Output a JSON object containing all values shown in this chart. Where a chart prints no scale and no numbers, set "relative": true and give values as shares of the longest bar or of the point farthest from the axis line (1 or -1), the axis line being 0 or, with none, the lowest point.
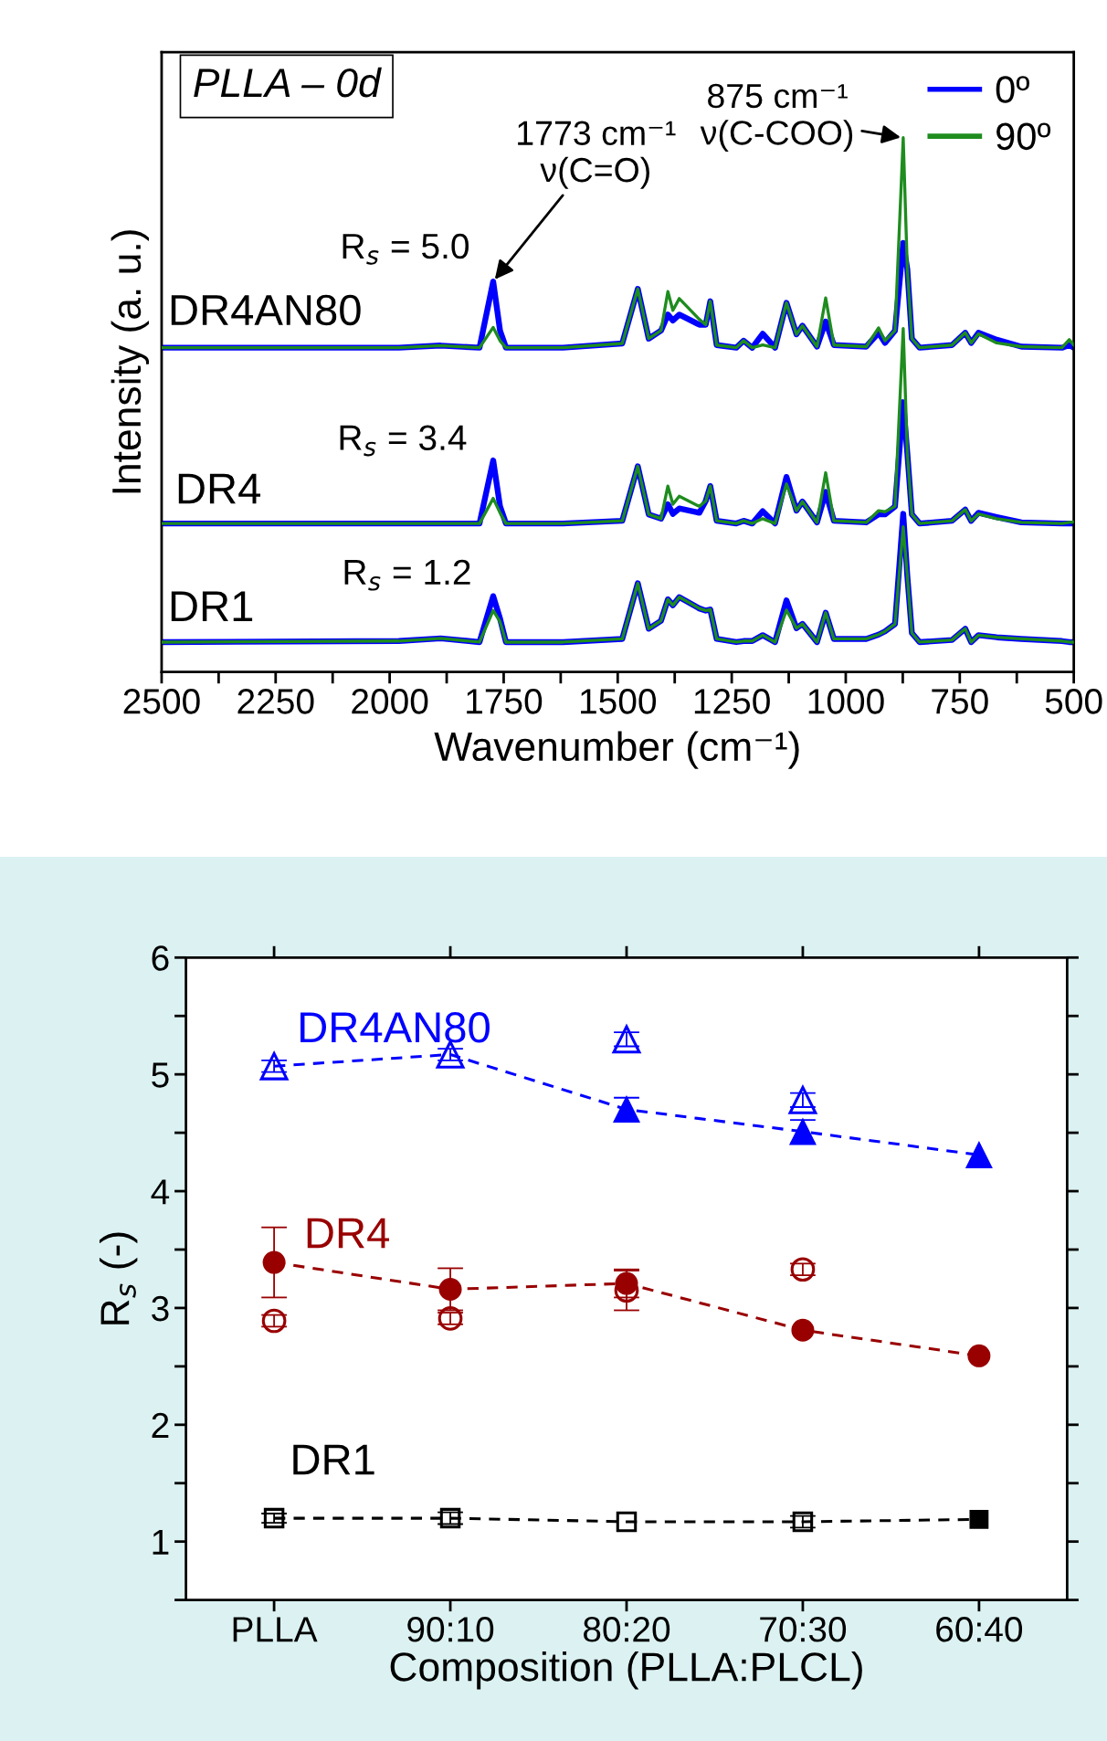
{
  "chart_data": [
    {
      "type": "line",
      "relative": true,
      "title": "PLLA – 0d",
      "xlabel": "Wavenumber (cm⁻¹)",
      "ylabel": "Intensity (a. u.)",
      "xlim": [
        2500,
        500
      ],
      "xticks": [
        2500,
        {
          "value": 2375,
          "label": null
        },
        2250,
        {
          "value": 2125,
          "label": null
        },
        2000,
        {
          "value": 1875,
          "label": null
        },
        1750,
        {
          "value": 1625,
          "label": null
        },
        1500,
        {
          "value": 1375,
          "label": null
        },
        1250,
        {
          "value": 1125,
          "label": null
        },
        1000,
        {
          "value": 875,
          "label": null
        },
        750,
        {
          "value": 625,
          "label": null
        },
        500
      ],
      "tick_labels": "x",
      "grid": false,
      "legend": "top right",
      "line_style": "solid",
      "x": [
        2500,
        1980,
        1888,
        1803,
        1773,
        1758,
        1745,
        1620,
        1490,
        1456,
        1432,
        1405,
        1390,
        1379,
        1365,
        1321,
        1307,
        1297,
        1283,
        1240,
        1224,
        1205,
        1182,
        1155,
        1130,
        1108,
        1095,
        1063,
        1044,
        1026,
        955,
        928,
        914,
        892,
        874,
        865,
        855,
        838,
        767,
        738,
        725,
        709,
        669,
        615,
        526,
        510,
        500
      ],
      "series": [
        {
          "name": "0º",
          "color": "#0000ff",
          "values": [
            0.607,
            0.607,
            0.611,
            0.607,
            0.731,
            0.639,
            0.607,
            0.607,
            0.615,
            0.717,
            0.624,
            0.639,
            0.669,
            0.658,
            0.669,
            0.65,
            0.65,
            0.694,
            0.612,
            0.607,
            0.62,
            0.607,
            0.633,
            0.607,
            0.691,
            0.632,
            0.648,
            0.609,
            0.656,
            0.612,
            0.609,
            0.635,
            0.616,
            0.639,
            0.803,
            0.754,
            0.624,
            0.607,
            0.612,
            0.635,
            0.616,
            0.635,
            0.622,
            0.609,
            0.607,
            0.612,
            0.607
          ]
        },
        {
          "name": "90º",
          "color": "#1e8c1e",
          "values": [
            0.607,
            0.607,
            0.611,
            0.607,
            0.645,
            0.62,
            0.607,
            0.607,
            0.615,
            0.717,
            0.624,
            0.639,
            0.712,
            0.677,
            0.699,
            0.66,
            0.65,
            0.694,
            0.612,
            0.607,
            0.62,
            0.607,
            0.612,
            0.607,
            0.691,
            0.632,
            0.648,
            0.609,
            0.7,
            0.612,
            0.609,
            0.644,
            0.62,
            0.639,
            1.0,
            0.754,
            0.624,
            0.607,
            0.612,
            0.635,
            0.616,
            0.633,
            0.616,
            0.609,
            0.607,
            0.622,
            0.612
          ]
        },
        {
          "color": "#0000ff",
          "values": [
            0.278,
            0.278,
            0.278,
            0.278,
            0.396,
            0.31,
            0.278,
            0.278,
            0.283,
            0.385,
            0.295,
            0.287,
            0.314,
            0.296,
            0.306,
            0.298,
            0.32,
            0.348,
            0.283,
            0.278,
            0.283,
            0.278,
            0.301,
            0.278,
            0.365,
            0.302,
            0.319,
            0.28,
            0.337,
            0.283,
            0.28,
            0.295,
            0.295,
            0.31,
            0.505,
            0.41,
            0.295,
            0.278,
            0.283,
            0.304,
            0.283,
            0.298,
            0.29,
            0.28,
            0.278,
            0.278,
            0.278
          ]
        },
        {
          "color": "#1e8c1e",
          "values": [
            0.278,
            0.278,
            0.278,
            0.278,
            0.325,
            0.298,
            0.278,
            0.278,
            0.283,
            0.385,
            0.295,
            0.287,
            0.348,
            0.314,
            0.329,
            0.31,
            0.32,
            0.348,
            0.283,
            0.278,
            0.283,
            0.278,
            0.287,
            0.278,
            0.352,
            0.302,
            0.319,
            0.28,
            0.373,
            0.283,
            0.28,
            0.302,
            0.3,
            0.31,
            0.643,
            0.41,
            0.295,
            0.278,
            0.283,
            0.304,
            0.283,
            0.296,
            0.287,
            0.28,
            0.278,
            0.28,
            0.281
          ]
        },
        {
          "color": "#0000ff",
          "values": [
            0.056,
            0.058,
            0.063,
            0.056,
            0.142,
            0.1,
            0.056,
            0.056,
            0.062,
            0.166,
            0.081,
            0.096,
            0.136,
            0.125,
            0.14,
            0.119,
            0.115,
            0.117,
            0.062,
            0.056,
            0.058,
            0.058,
            0.069,
            0.056,
            0.134,
            0.082,
            0.09,
            0.056,
            0.111,
            0.062,
            0.062,
            0.07,
            0.076,
            0.09,
            0.296,
            0.18,
            0.073,
            0.056,
            0.06,
            0.081,
            0.056,
            0.069,
            0.065,
            0.062,
            0.058,
            0.056,
            0.056
          ]
        },
        {
          "color": "#1e8c1e",
          "values": [
            0.056,
            0.058,
            0.063,
            0.056,
            0.115,
            0.094,
            0.056,
            0.056,
            0.062,
            0.166,
            0.081,
            0.096,
            0.136,
            0.125,
            0.14,
            0.119,
            0.115,
            0.117,
            0.062,
            0.056,
            0.058,
            0.058,
            0.069,
            0.056,
            0.116,
            0.082,
            0.09,
            0.056,
            0.111,
            0.062,
            0.062,
            0.07,
            0.076,
            0.09,
            0.272,
            0.18,
            0.073,
            0.056,
            0.06,
            0.081,
            0.056,
            0.069,
            0.065,
            0.062,
            0.058,
            0.056,
            0.056
          ]
        }
      ],
      "annotations": [
        "DR4AN80",
        "DR4",
        "DR1",
        "R$_{s}$ = 5.0",
        "R$_{s}$ = 3.4",
        "R$_{s}$ = 1.2",
        {
          "text": "1773 cm⁻¹\nν(C=O)",
          "x": 1773,
          "y": 0.731
        },
        {
          "text": "875 cm⁻¹\nν(C-COO)",
          "x": 874,
          "y": 1.0
        }
      ]
    },
    {
      "type": "line",
      "xlabel": "Composition (PLLA:PLCL)",
      "ylabel": "R$_{s}$ (-)",
      "categories": [
        "PLLA",
        "90:10",
        "80:20",
        "70:30",
        "60:40"
      ],
      "ylim": [
        0.5,
        6
      ],
      "yticks": [
        {
          "value": 0.5,
          "label": null
        },
        1,
        {
          "value": 1.5,
          "label": null
        },
        2,
        {
          "value": 2.5,
          "label": null
        },
        3,
        {
          "value": 3.5,
          "label": null
        },
        4,
        {
          "value": 4.5,
          "label": null
        },
        5,
        {
          "value": 5.5,
          "label": null
        },
        6
      ],
      "grid": false,
      "series": [
        {
          "name": "DR4AN80",
          "type": "line",
          "color": "#0000ff",
          "line_style": "dashed",
          "marker": "none",
          "values": [
            5.07,
            5.17,
            4.7,
            4.51,
            4.31
          ]
        },
        {
          "type": "scatter",
          "color": "#0000ff",
          "marker": "triangle",
          "values": [
            null,
            null,
            4.7,
            4.51,
            4.31
          ],
          "errors": [
            null,
            null,
            0.1,
            0.1,
            null
          ]
        },
        {
          "type": "scatter",
          "color": "#0000ff",
          "marker": "triangle-open",
          "values": [
            5.07,
            5.17,
            5.3,
            4.78,
            null
          ],
          "errors": [
            0.05,
            0.05,
            0.06,
            0.06,
            null
          ]
        },
        {
          "name": "DR4",
          "type": "line",
          "color": "#990000",
          "line_style": "dashed",
          "marker": "none",
          "values": [
            3.39,
            3.16,
            3.21,
            2.81,
            2.59
          ]
        },
        {
          "type": "scatter",
          "color": "#990000",
          "marker": "circle",
          "values": [
            3.39,
            3.16,
            3.21,
            2.81,
            2.59
          ],
          "errors": [
            0.3,
            0.18,
            0.12,
            null,
            null
          ]
        },
        {
          "type": "scatter",
          "color": "#990000",
          "marker": "circle-open",
          "values": [
            2.89,
            2.91,
            3.15,
            3.33,
            null
          ],
          "errors": [
            0.05,
            0.05,
            0.17,
            0.05,
            null
          ]
        },
        {
          "name": "DR1",
          "type": "line",
          "color": "#000000",
          "line_style": "dashed",
          "marker": "none",
          "values": [
            1.2,
            1.2,
            1.17,
            1.17,
            1.19
          ]
        },
        {
          "type": "scatter",
          "color": "#000000",
          "marker": "square",
          "values": [
            null,
            null,
            null,
            null,
            1.19
          ]
        },
        {
          "type": "scatter",
          "color": "#000000",
          "marker": "square-open",
          "values": [
            1.2,
            1.2,
            1.17,
            1.17,
            null
          ],
          "errors": [
            0.04,
            0.05,
            null,
            0.05,
            null
          ]
        }
      ]
    }
  ]
}
